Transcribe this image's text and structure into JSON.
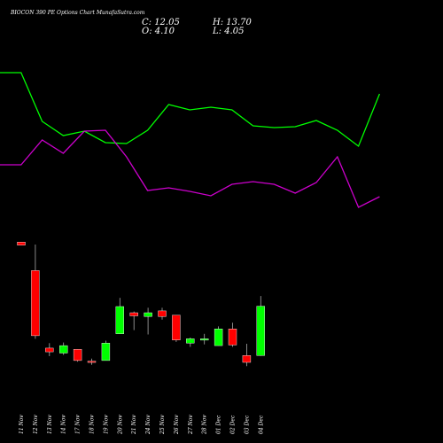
{
  "header": {
    "title": "BIOCON 390 PE Options Chart MunafaSutra.com",
    "close_label": "C: 12.05",
    "high_label": "H: 13.70",
    "open_label": "O: 4.10",
    "low_label": "L: 4.05"
  },
  "colors": {
    "background": "#000000",
    "up": "#00ff00",
    "down": "#ff0000",
    "line_green": "#00ff00",
    "line_magenta": "#cc00cc",
    "wick": "#aaaaaa"
  },
  "chart_data": {
    "type": "candlestick",
    "categories": [
      "11 Nov",
      "12 Nov",
      "13 Nov",
      "14 Nov",
      "17 Nov",
      "18 Nov",
      "19 Nov",
      "20 Nov",
      "21 Nov",
      "24 Nov",
      "25 Nov",
      "26 Nov",
      "27 Nov",
      "28 Nov",
      "01 Dec",
      "02 Dec",
      "03 Dec",
      "04 Dec"
    ],
    "candles": [
      {
        "o": 22.4,
        "h": 22.4,
        "l": 21.9,
        "c": 21.9
      },
      {
        "o": 17.8,
        "h": 22.0,
        "l": 6.8,
        "c": 7.3
      },
      {
        "o": 5.3,
        "h": 6.1,
        "l": 4.0,
        "c": 4.7
      },
      {
        "o": 4.5,
        "h": 6.2,
        "l": 4.2,
        "c": 5.7
      },
      {
        "o": 5.1,
        "h": 5.1,
        "l": 3.1,
        "c": 3.3
      },
      {
        "o": 3.2,
        "h": 3.6,
        "l": 2.6,
        "c": 3.0
      },
      {
        "o": 3.3,
        "h": 6.5,
        "l": 3.3,
        "c": 6.1
      },
      {
        "o": 7.6,
        "h": 13.4,
        "l": 7.6,
        "c": 12.0
      },
      {
        "o": 11.0,
        "h": 11.2,
        "l": 8.2,
        "c": 10.5
      },
      {
        "o": 10.4,
        "h": 11.8,
        "l": 7.5,
        "c": 11.0
      },
      {
        "o": 11.3,
        "h": 11.8,
        "l": 9.9,
        "c": 10.4
      },
      {
        "o": 10.6,
        "h": 10.6,
        "l": 6.3,
        "c": 6.6
      },
      {
        "o": 6.1,
        "h": 7.0,
        "l": 5.5,
        "c": 6.8
      },
      {
        "o": 6.8,
        "h": 7.6,
        "l": 5.9,
        "c": 6.8
      },
      {
        "o": 5.7,
        "h": 8.8,
        "l": 5.7,
        "c": 8.4
      },
      {
        "o": 8.4,
        "h": 9.4,
        "l": 5.5,
        "c": 5.8
      },
      {
        "o": 4.1,
        "h": 6.0,
        "l": 2.4,
        "c": 3.0
      },
      {
        "o": 4.1,
        "h": 13.7,
        "l": 4.05,
        "c": 12.05
      }
    ],
    "line_green_values": [
      82,
      82,
      137,
      153,
      148,
      161,
      162,
      147,
      118,
      124,
      121,
      124,
      142,
      144,
      143,
      136,
      147,
      165,
      106
    ],
    "line_magenta_values": [
      186,
      186,
      158,
      173,
      148,
      147,
      177,
      215,
      212,
      216,
      221,
      208,
      205,
      208,
      218,
      206,
      177,
      234,
      222
    ],
    "price_range": [
      0,
      25
    ]
  }
}
